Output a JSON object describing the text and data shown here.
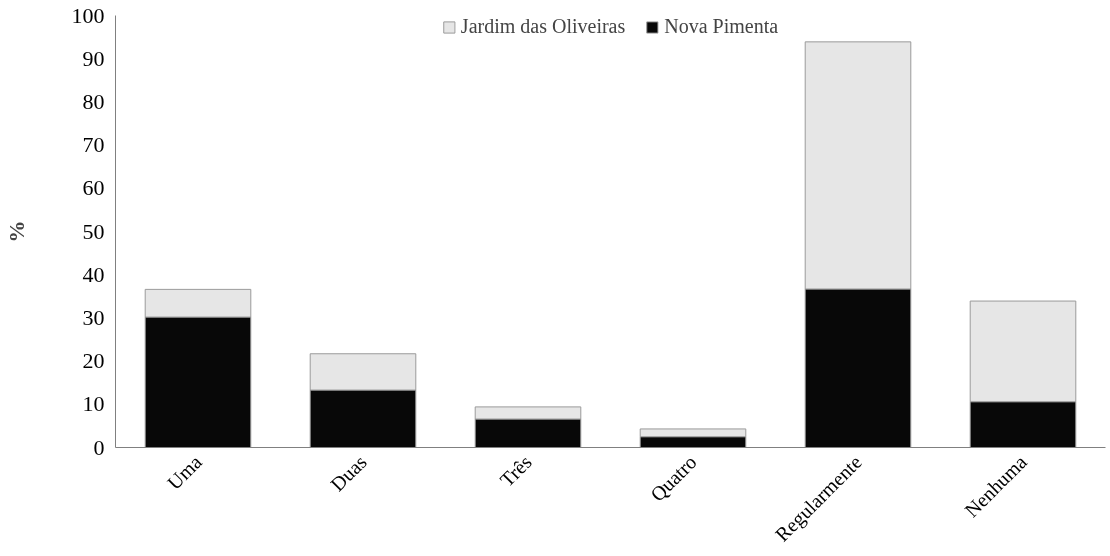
{
  "chart_data": {
    "type": "bar",
    "stacked": true,
    "ylabel": "%",
    "categories": [
      "Uma",
      "Duas",
      "Três",
      "Quatro",
      "Regularmente",
      "Nenhuma"
    ],
    "series": [
      {
        "name": "Nova Pimenta",
        "color": "#080808",
        "values": [
          30.2,
          13.3,
          6.6,
          2.5,
          36.7,
          10.6
        ]
      },
      {
        "name": "Jardim das Oliveiras",
        "color": "#e6e6e6",
        "values": [
          6.4,
          8.4,
          2.8,
          1.8,
          57.2,
          23.3
        ]
      }
    ],
    "ylim": [
      0,
      100
    ],
    "yticks": [
      0,
      10,
      20,
      30,
      40,
      50,
      60,
      70,
      80,
      90,
      100
    ],
    "grid": false,
    "legend": "top"
  }
}
